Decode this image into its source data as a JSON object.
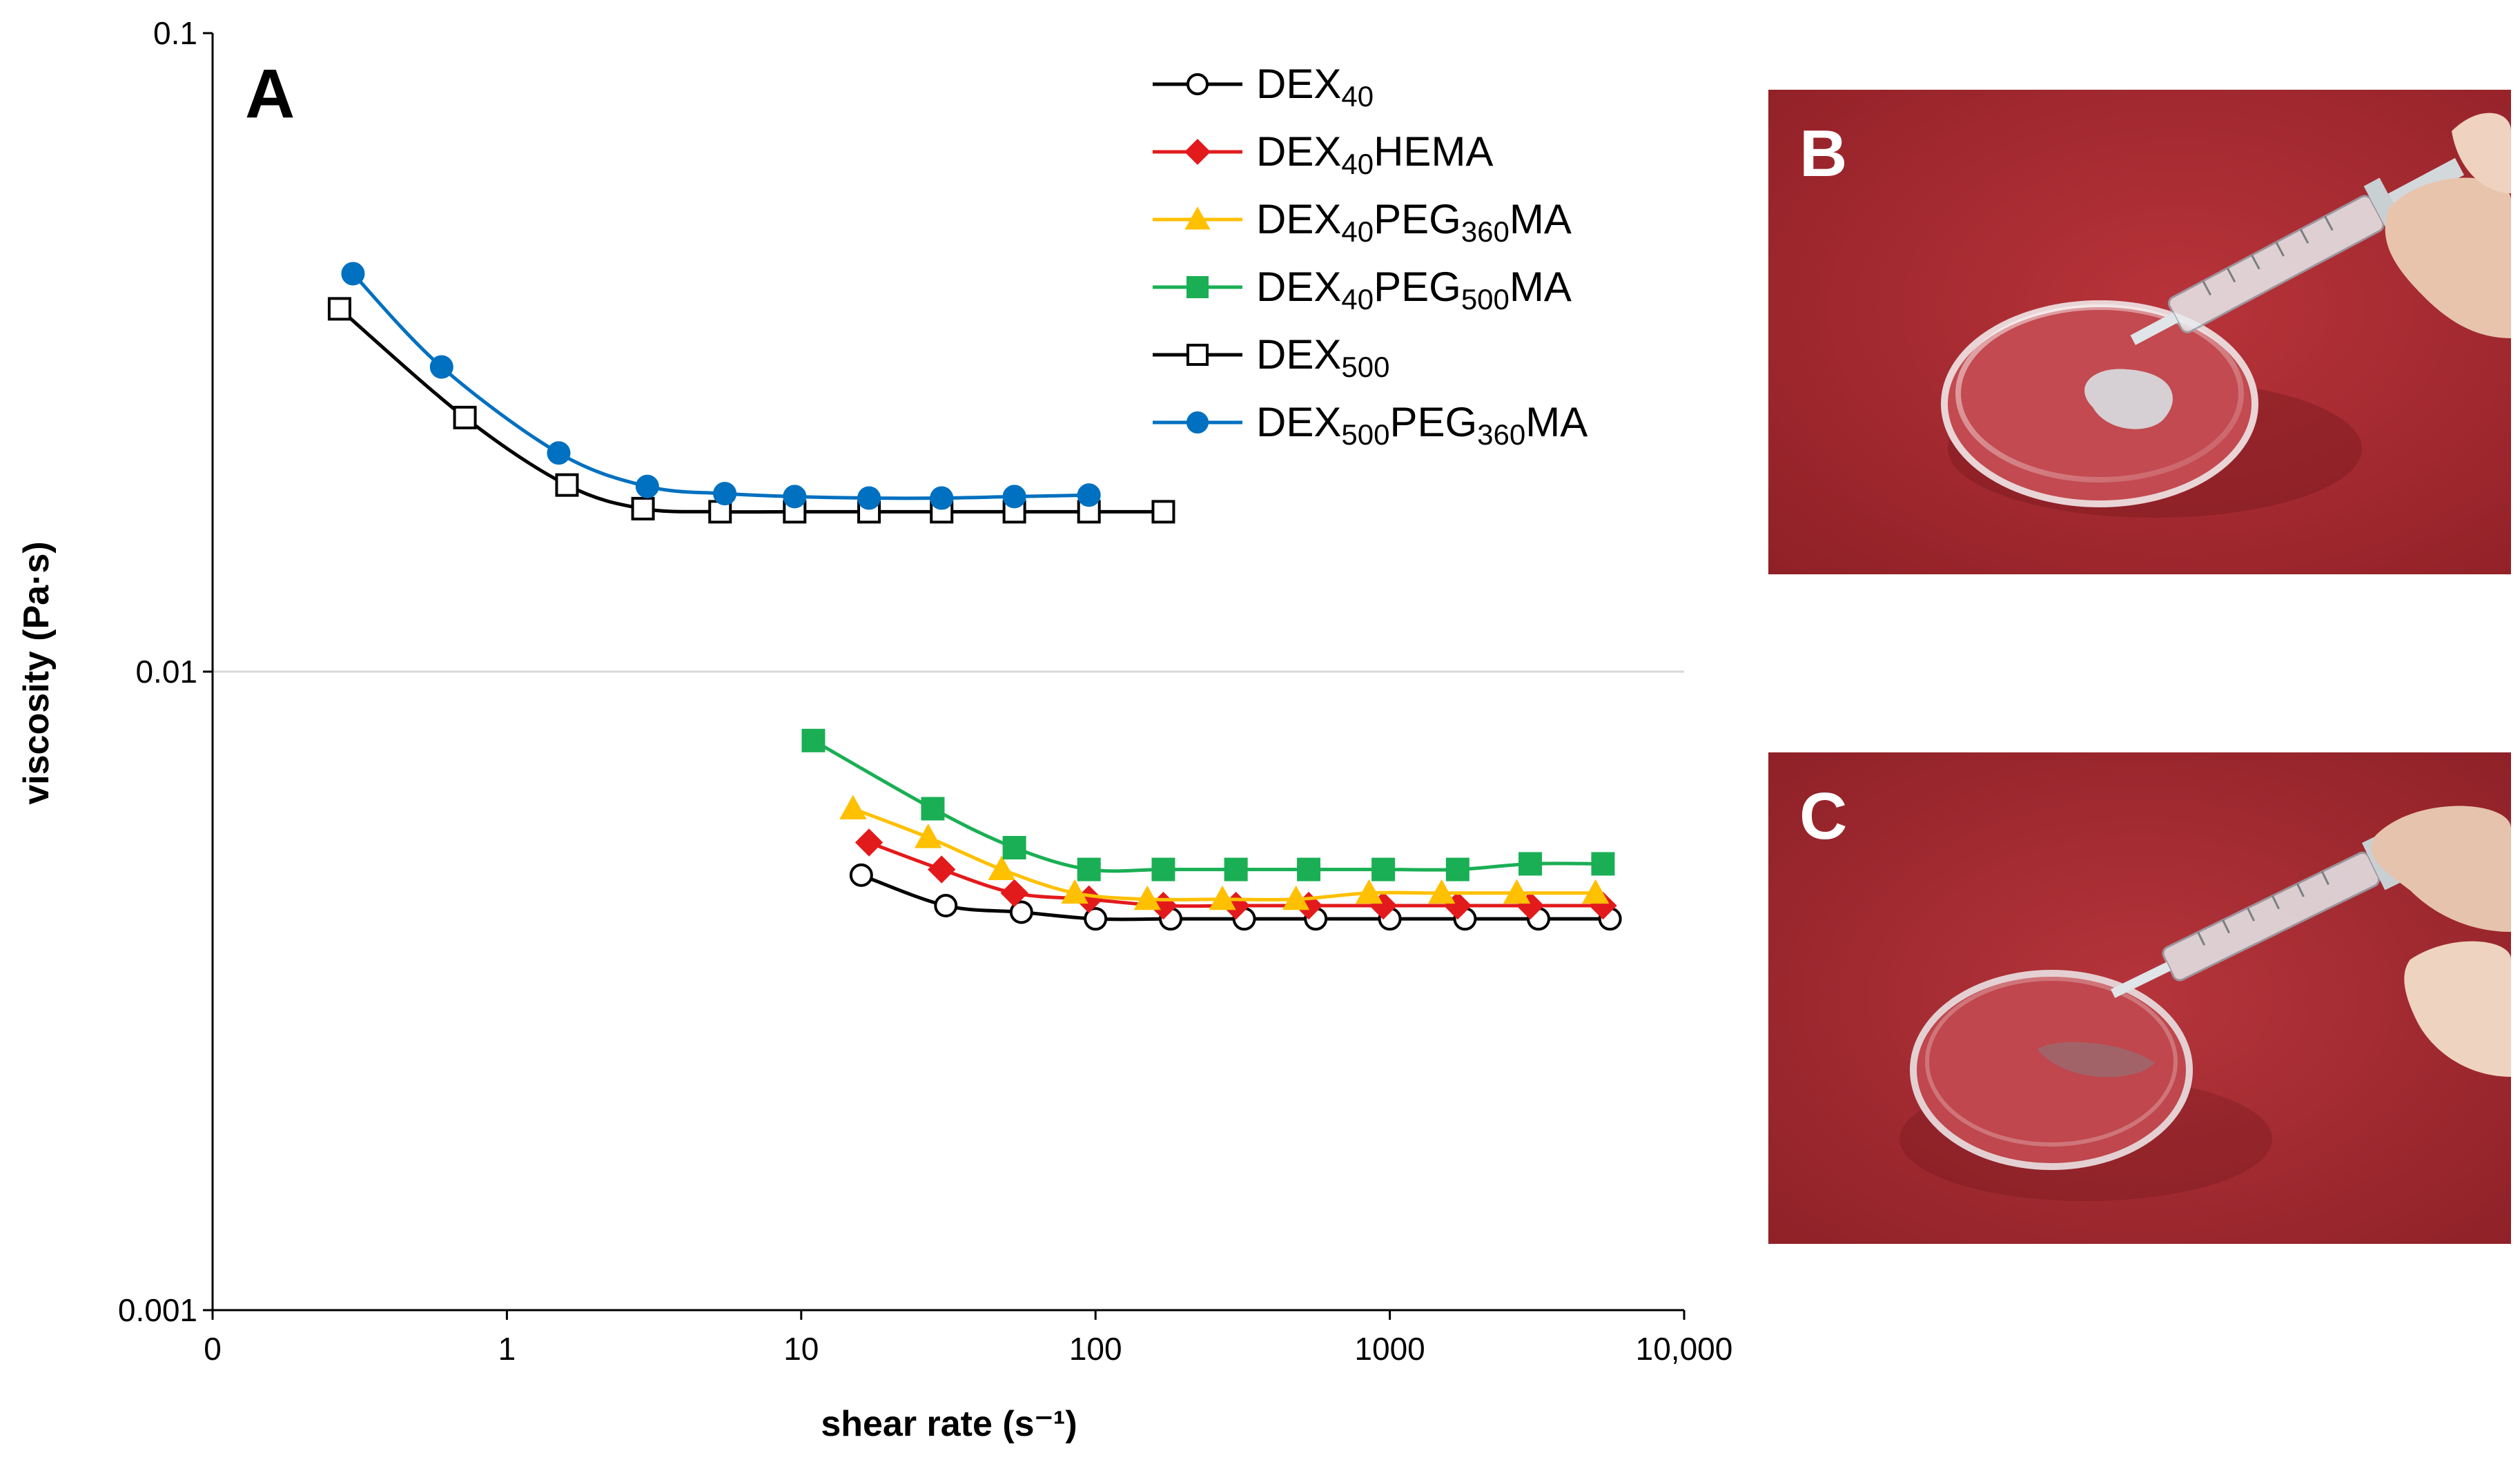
{
  "chart_data": {
    "type": "line",
    "panel_label": "A",
    "xlabel": "shear rate (s⁻¹)",
    "ylabel": "viscosity (Pa·s)",
    "x_scale": "log",
    "y_scale": "log",
    "xlim": [
      0.1,
      10000
    ],
    "ylim": [
      0.001,
      0.1
    ],
    "x_tick_values": [
      0.1,
      1,
      10,
      100,
      1000,
      10000
    ],
    "x_tick_labels": [
      "0",
      "1",
      "10",
      "100",
      "1000",
      "10,000"
    ],
    "y_tick_values": [
      0.001,
      0.01,
      0.1
    ],
    "y_tick_labels": [
      "0.001",
      "0.01",
      "0.1"
    ],
    "gridlines": "horizontal at 0.01",
    "legend_position": "top-right",
    "series": [
      {
        "name": "DEX40",
        "label_parts": [
          {
            "t": "DEX"
          },
          {
            "t": "40",
            "sub": true
          }
        ],
        "color": "#000000",
        "marker": "circle-open",
        "x": [
          16,
          31,
          56,
          100,
          180,
          320,
          560,
          1000,
          1800,
          3200,
          5600
        ],
        "y": [
          0.0048,
          0.0043,
          0.0042,
          0.0041,
          0.0041,
          0.0041,
          0.0041,
          0.0041,
          0.0041,
          0.0041,
          0.0041
        ]
      },
      {
        "name": "DEX40HEMA",
        "label_parts": [
          {
            "t": "DEX"
          },
          {
            "t": "40",
            "sub": true
          },
          {
            "t": "HEMA"
          }
        ],
        "color": "#e31a1c",
        "marker": "diamond",
        "x": [
          17,
          30,
          53,
          95,
          170,
          300,
          530,
          950,
          1700,
          3000,
          5300
        ],
        "y": [
          0.0054,
          0.0049,
          0.0045,
          0.0044,
          0.0043,
          0.0043,
          0.0043,
          0.0043,
          0.0043,
          0.0043,
          0.0043
        ]
      },
      {
        "name": "DEX40PEG360MA",
        "label_parts": [
          {
            "t": "DEX"
          },
          {
            "t": "40",
            "sub": true
          },
          {
            "t": "PEG"
          },
          {
            "t": "360",
            "sub": true
          },
          {
            "t": "MA"
          }
        ],
        "color": "#ffc000",
        "marker": "triangle",
        "x": [
          15,
          27,
          48,
          85,
          150,
          270,
          480,
          850,
          1500,
          2700,
          5000
        ],
        "y": [
          0.0061,
          0.0055,
          0.0049,
          0.0045,
          0.0044,
          0.0044,
          0.0044,
          0.0045,
          0.0045,
          0.0045,
          0.0045
        ]
      },
      {
        "name": "DEX40PEG500MA",
        "label_parts": [
          {
            "t": "DEX"
          },
          {
            "t": "40",
            "sub": true
          },
          {
            "t": "PEG"
          },
          {
            "t": "500",
            "sub": true
          },
          {
            "t": "MA"
          }
        ],
        "color": "#1aaf54",
        "marker": "square",
        "x": [
          11,
          28,
          53,
          95,
          170,
          300,
          530,
          950,
          1700,
          3000,
          5300
        ],
        "y": [
          0.0078,
          0.0061,
          0.0053,
          0.0049,
          0.0049,
          0.0049,
          0.0049,
          0.0049,
          0.0049,
          0.005,
          0.005
        ]
      },
      {
        "name": "DEX500",
        "label_parts": [
          {
            "t": "DEX"
          },
          {
            "t": "500",
            "sub": true
          }
        ],
        "color": "#000000",
        "marker": "square-open",
        "x": [
          0.27,
          0.72,
          1.6,
          2.9,
          5.3,
          9.5,
          17,
          30,
          53,
          95,
          170
        ],
        "y": [
          0.037,
          0.025,
          0.0196,
          0.018,
          0.0178,
          0.0178,
          0.0178,
          0.0178,
          0.0178,
          0.0178,
          0.0178
        ]
      },
      {
        "name": "DEX500PEG360MA",
        "label_parts": [
          {
            "t": "DEX"
          },
          {
            "t": "500",
            "sub": true
          },
          {
            "t": "PEG"
          },
          {
            "t": "360",
            "sub": true
          },
          {
            "t": "MA"
          }
        ],
        "color": "#0070c0",
        "marker": "circle",
        "x": [
          0.3,
          0.6,
          1.5,
          3.0,
          5.5,
          9.5,
          17,
          30,
          53,
          95
        ],
        "y": [
          0.042,
          0.03,
          0.022,
          0.0195,
          0.019,
          0.0188,
          0.0187,
          0.0187,
          0.0188,
          0.0189
        ]
      }
    ]
  },
  "photos": [
    {
      "label": "B",
      "description_icon": "syringe-gel-dish"
    },
    {
      "label": "C",
      "description_icon": "syringe-liquid-dish"
    }
  ],
  "colors": {
    "photo_background": "#a52a2e",
    "axis": "#000000",
    "gridline": "#d9d9d9"
  }
}
